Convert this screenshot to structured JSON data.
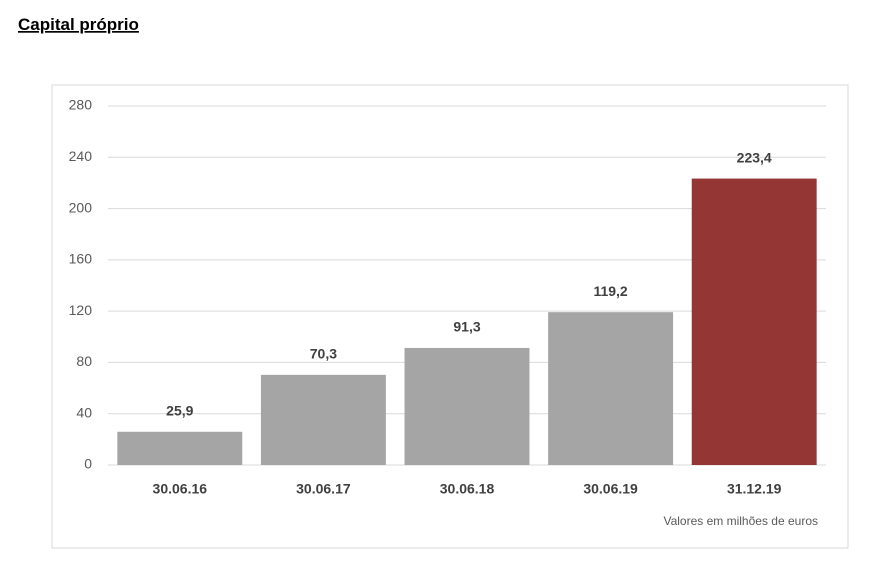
{
  "chart_data": {
    "type": "bar",
    "title": "Capital próprio",
    "categories": [
      "30.06.16",
      "30.06.17",
      "30.06.18",
      "30.06.19",
      "31.12.19"
    ],
    "values": [
      25.9,
      70.3,
      91.3,
      119.2,
      223.4
    ],
    "value_labels": [
      "25,9",
      "70,3",
      "91,3",
      "119,2",
      "223,4"
    ],
    "colors": [
      "#a5a5a5",
      "#a5a5a5",
      "#a5a5a5",
      "#a5a5a5",
      "#943634"
    ],
    "ylim": [
      0,
      280
    ],
    "yticks": [
      0,
      40,
      80,
      120,
      160,
      200,
      240,
      280
    ],
    "grid": true,
    "note": "Valores em milhões de euros"
  }
}
